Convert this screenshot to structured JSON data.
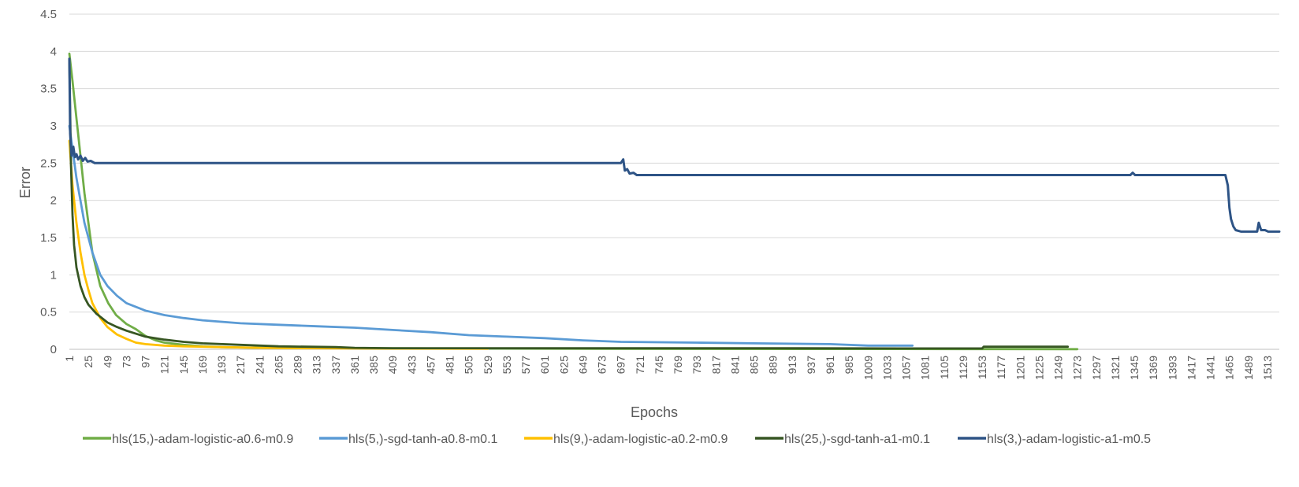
{
  "chart_data": {
    "type": "line",
    "title": "",
    "xlabel": "Epochs",
    "ylabel": "Error",
    "xlim": [
      1,
      1528
    ],
    "ylim": [
      0,
      4.5
    ],
    "yticks": [
      "0",
      "0.5",
      "1",
      "1.5",
      "2",
      "2.5",
      "3",
      "3.5",
      "4",
      "4.5"
    ],
    "xtick_start": 1,
    "xtick_step": 24,
    "xtick_count": 64,
    "grid": true,
    "legend": "bottom",
    "series": [
      {
        "name": "hls(15,)-adam-logistic-a0.6-m0.9",
        "color": "#70ad47",
        "points": [
          [
            1,
            3.97
          ],
          [
            5,
            3.6
          ],
          [
            10,
            3.1
          ],
          [
            15,
            2.6
          ],
          [
            20,
            2.1
          ],
          [
            25,
            1.7
          ],
          [
            30,
            1.3
          ],
          [
            40,
            0.85
          ],
          [
            50,
            0.62
          ],
          [
            60,
            0.46
          ],
          [
            73,
            0.34
          ],
          [
            85,
            0.27
          ],
          [
            97,
            0.18
          ],
          [
            110,
            0.12
          ],
          [
            121,
            0.09
          ],
          [
            145,
            0.06
          ],
          [
            169,
            0.04
          ],
          [
            193,
            0.03
          ],
          [
            241,
            0.02
          ],
          [
            337,
            0.015
          ],
          [
            529,
            0.01
          ],
          [
            793,
            0.005
          ],
          [
            1129,
            0.003
          ],
          [
            1273,
            0.002
          ]
        ]
      },
      {
        "name": "hls(5,)-sgd-tanh-a0.8-m0.1",
        "color": "#5b9bd5",
        "points": [
          [
            1,
            3.0
          ],
          [
            10,
            2.3
          ],
          [
            20,
            1.7
          ],
          [
            30,
            1.3
          ],
          [
            40,
            1.0
          ],
          [
            49,
            0.85
          ],
          [
            61,
            0.72
          ],
          [
            73,
            0.62
          ],
          [
            97,
            0.52
          ],
          [
            121,
            0.46
          ],
          [
            145,
            0.42
          ],
          [
            169,
            0.39
          ],
          [
            193,
            0.37
          ],
          [
            217,
            0.35
          ],
          [
            265,
            0.33
          ],
          [
            313,
            0.31
          ],
          [
            361,
            0.29
          ],
          [
            409,
            0.26
          ],
          [
            457,
            0.23
          ],
          [
            505,
            0.19
          ],
          [
            553,
            0.17
          ],
          [
            601,
            0.15
          ],
          [
            649,
            0.12
          ],
          [
            697,
            0.1
          ],
          [
            793,
            0.09
          ],
          [
            865,
            0.08
          ],
          [
            961,
            0.07
          ],
          [
            1009,
            0.05
          ],
          [
            1065,
            0.05
          ]
        ]
      },
      {
        "name": "hls(9,)-adam-logistic-a0.2-m0.9",
        "color": "#ffc000",
        "points": [
          [
            1,
            2.8
          ],
          [
            5,
            2.2
          ],
          [
            10,
            1.7
          ],
          [
            15,
            1.3
          ],
          [
            20,
            1.0
          ],
          [
            25,
            0.8
          ],
          [
            30,
            0.62
          ],
          [
            40,
            0.42
          ],
          [
            49,
            0.3
          ],
          [
            61,
            0.2
          ],
          [
            73,
            0.14
          ],
          [
            85,
            0.09
          ],
          [
            97,
            0.07
          ],
          [
            121,
            0.05
          ],
          [
            145,
            0.04
          ],
          [
            193,
            0.03
          ],
          [
            241,
            0.02
          ],
          [
            313,
            0.015
          ],
          [
            409,
            0.01
          ],
          [
            529,
            0.008
          ]
        ]
      },
      {
        "name": "hls(25,)-sgd-tanh-a1-m0.1",
        "color": "#375623",
        "points": [
          [
            1,
            3.9
          ],
          [
            3,
            2.5
          ],
          [
            5,
            1.8
          ],
          [
            7,
            1.4
          ],
          [
            10,
            1.1
          ],
          [
            15,
            0.85
          ],
          [
            20,
            0.7
          ],
          [
            25,
            0.6
          ],
          [
            35,
            0.48
          ],
          [
            49,
            0.36
          ],
          [
            61,
            0.3
          ],
          [
            73,
            0.25
          ],
          [
            97,
            0.17
          ],
          [
            121,
            0.13
          ],
          [
            145,
            0.1
          ],
          [
            169,
            0.08
          ],
          [
            217,
            0.06
          ],
          [
            265,
            0.04
          ],
          [
            337,
            0.03
          ],
          [
            361,
            0.02
          ],
          [
            409,
            0.015
          ],
          [
            529,
            0.015
          ],
          [
            697,
            0.015
          ],
          [
            889,
            0.015
          ],
          [
            1057,
            0.012
          ],
          [
            1153,
            0.012
          ],
          [
            1155,
            0.035
          ],
          [
            1261,
            0.035
          ]
        ]
      },
      {
        "name": "hls(3,)-adam-logistic-a1-m0.5",
        "color": "#2e5486",
        "points": [
          [
            1,
            3.9
          ],
          [
            2,
            2.9
          ],
          [
            3,
            2.7
          ],
          [
            4,
            2.6
          ],
          [
            6,
            2.72
          ],
          [
            8,
            2.58
          ],
          [
            10,
            2.62
          ],
          [
            12,
            2.55
          ],
          [
            15,
            2.6
          ],
          [
            18,
            2.53
          ],
          [
            21,
            2.57
          ],
          [
            24,
            2.52
          ],
          [
            28,
            2.53
          ],
          [
            33,
            2.5
          ],
          [
            40,
            2.5
          ],
          [
            200,
            2.5
          ],
          [
            400,
            2.5
          ],
          [
            600,
            2.5
          ],
          [
            697,
            2.5
          ],
          [
            700,
            2.55
          ],
          [
            702,
            2.4
          ],
          [
            705,
            2.42
          ],
          [
            708,
            2.36
          ],
          [
            713,
            2.37
          ],
          [
            717,
            2.34
          ],
          [
            900,
            2.34
          ],
          [
            1100,
            2.34
          ],
          [
            1340,
            2.34
          ],
          [
            1343,
            2.37
          ],
          [
            1346,
            2.34
          ],
          [
            1460,
            2.34
          ],
          [
            1463,
            2.2
          ],
          [
            1465,
            1.9
          ],
          [
            1467,
            1.75
          ],
          [
            1470,
            1.65
          ],
          [
            1473,
            1.6
          ],
          [
            1480,
            1.58
          ],
          [
            1500,
            1.58
          ],
          [
            1502,
            1.7
          ],
          [
            1505,
            1.6
          ],
          [
            1510,
            1.6
          ],
          [
            1514,
            1.58
          ],
          [
            1528,
            1.58
          ]
        ]
      }
    ]
  }
}
